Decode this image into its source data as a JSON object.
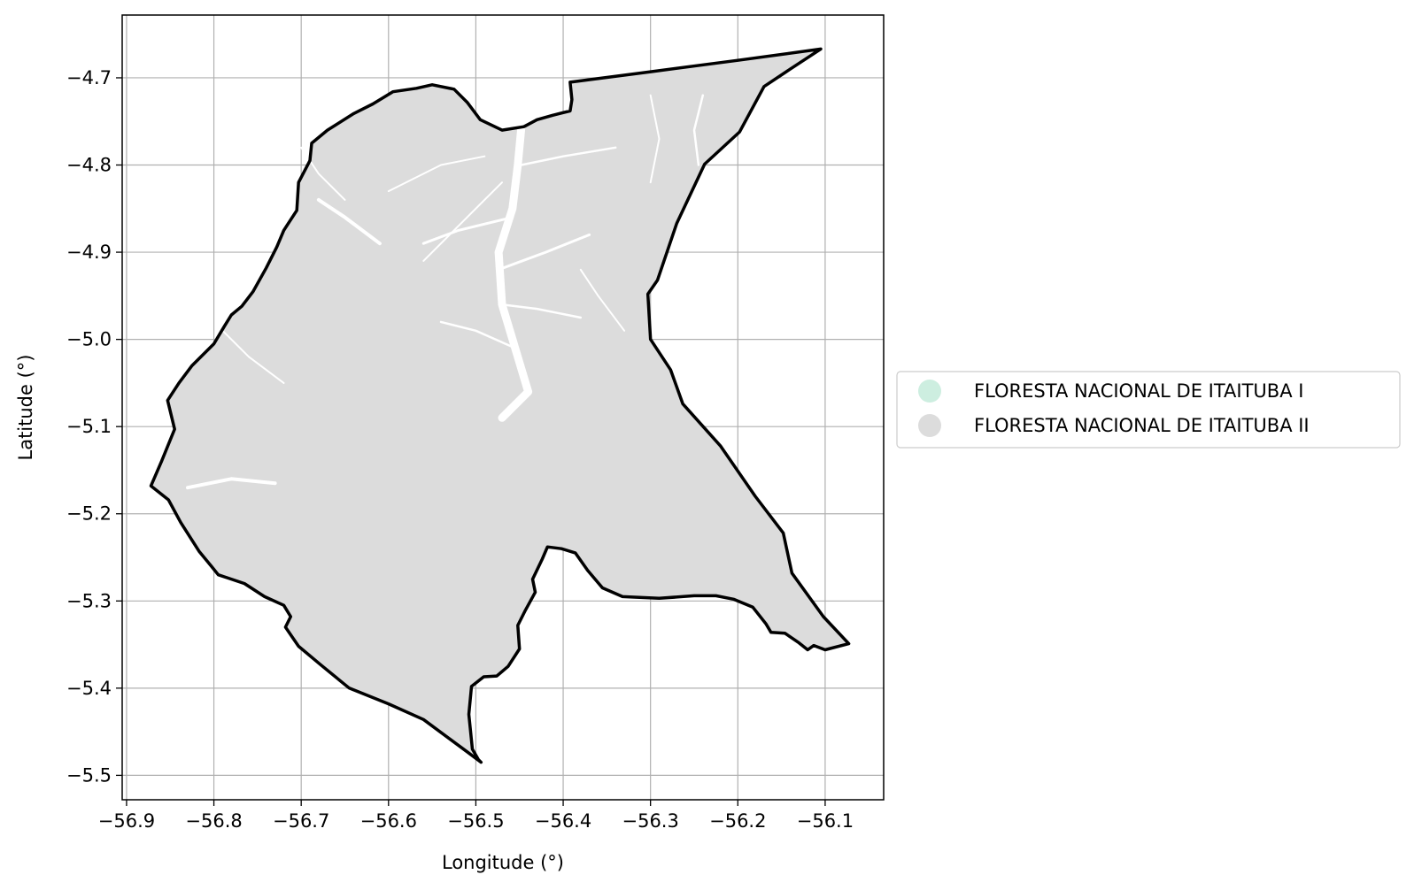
{
  "chart_data": {
    "type": "map",
    "xlabel": "Longitude (°)",
    "ylabel": "Latitude (°)",
    "xlim": [
      -56.905,
      -56.033
    ],
    "ylim": [
      -5.528,
      -4.628
    ],
    "x_ticks": [
      -56.9,
      -56.8,
      -56.7,
      -56.6,
      -56.5,
      -56.4,
      -56.3,
      -56.2,
      -56.1
    ],
    "x_tick_labels": [
      "−56.9",
      "−56.8",
      "−56.7",
      "−56.6",
      "−56.5",
      "−56.4",
      "−56.3",
      "−56.2",
      "−56.1"
    ],
    "y_ticks": [
      -4.7,
      -4.8,
      -4.9,
      -5.0,
      -5.1,
      -5.2,
      -5.3,
      -5.4,
      -5.5
    ],
    "y_tick_labels": [
      "−4.7",
      "−4.8",
      "−4.9",
      "−5.0",
      "−5.1",
      "−5.2",
      "−5.3",
      "−5.4",
      "−5.5"
    ],
    "grid": true,
    "legend_position": "center-right outside",
    "legend": [
      {
        "label": "FLORESTA NACIONAL DE ITAITUBA I",
        "color": "#cdeee0"
      },
      {
        "label": "FLORESTA NACIONAL DE ITAITUBA II",
        "color": "#dcdcdc"
      }
    ],
    "region_fill": "#dcdcdc",
    "boundary_color": "#000000",
    "boundary": [
      [
        -56.105,
        -4.667
      ],
      [
        -56.14,
        -4.69
      ],
      [
        -56.17,
        -4.71
      ],
      [
        -56.198,
        -4.762
      ],
      [
        -56.238,
        -4.799
      ],
      [
        -56.27,
        -4.867
      ],
      [
        -56.292,
        -4.932
      ],
      [
        -56.303,
        -4.948
      ],
      [
        -56.3,
        -5.0
      ],
      [
        -56.277,
        -5.035
      ],
      [
        -56.263,
        -5.074
      ],
      [
        -56.22,
        -5.122
      ],
      [
        -56.18,
        -5.18
      ],
      [
        -56.148,
        -5.222
      ],
      [
        -56.138,
        -5.268
      ],
      [
        -56.102,
        -5.318
      ],
      [
        -56.073,
        -5.349
      ],
      [
        -56.1,
        -5.356
      ],
      [
        -56.113,
        -5.351
      ],
      [
        -56.12,
        -5.356
      ],
      [
        -56.13,
        -5.348
      ],
      [
        -56.146,
        -5.337
      ],
      [
        -56.162,
        -5.336
      ],
      [
        -56.168,
        -5.326
      ],
      [
        -56.183,
        -5.307
      ],
      [
        -56.205,
        -5.298
      ],
      [
        -56.225,
        -5.294
      ],
      [
        -56.25,
        -5.294
      ],
      [
        -56.29,
        -5.297
      ],
      [
        -56.332,
        -5.295
      ],
      [
        -56.355,
        -5.285
      ],
      [
        -56.372,
        -5.265
      ],
      [
        -56.386,
        -5.245
      ],
      [
        -56.402,
        -5.24
      ],
      [
        -56.418,
        -5.238
      ],
      [
        -56.424,
        -5.252
      ],
      [
        -56.435,
        -5.275
      ],
      [
        -56.432,
        -5.29
      ],
      [
        -56.444,
        -5.312
      ],
      [
        -56.452,
        -5.328
      ],
      [
        -56.45,
        -5.355
      ],
      [
        -56.463,
        -5.375
      ],
      [
        -56.476,
        -5.386
      ],
      [
        -56.491,
        -5.387
      ],
      [
        -56.505,
        -5.398
      ],
      [
        -56.508,
        -5.43
      ],
      [
        -56.504,
        -5.47
      ],
      [
        -56.497,
        -5.482
      ],
      [
        -56.494,
        -5.485
      ],
      [
        -56.51,
        -5.473
      ],
      [
        -56.56,
        -5.436
      ],
      [
        -56.6,
        -5.418
      ],
      [
        -56.645,
        -5.4
      ],
      [
        -56.678,
        -5.373
      ],
      [
        -56.703,
        -5.352
      ],
      [
        -56.718,
        -5.33
      ],
      [
        -56.712,
        -5.318
      ],
      [
        -56.72,
        -5.305
      ],
      [
        -56.742,
        -5.295
      ],
      [
        -56.765,
        -5.28
      ],
      [
        -56.795,
        -5.27
      ],
      [
        -56.803,
        -5.26
      ],
      [
        -56.817,
        -5.243
      ],
      [
        -56.838,
        -5.21
      ],
      [
        -56.852,
        -5.184
      ],
      [
        -56.872,
        -5.168
      ],
      [
        -56.86,
        -5.14
      ],
      [
        -56.845,
        -5.103
      ],
      [
        -56.853,
        -5.07
      ],
      [
        -56.84,
        -5.05
      ],
      [
        -56.825,
        -5.03
      ],
      [
        -56.8,
        -5.005
      ],
      [
        -56.788,
        -4.985
      ],
      [
        -56.78,
        -4.972
      ],
      [
        -56.768,
        -4.962
      ],
      [
        -56.755,
        -4.945
      ],
      [
        -56.74,
        -4.918
      ],
      [
        -56.728,
        -4.894
      ],
      [
        -56.72,
        -4.875
      ],
      [
        -56.705,
        -4.852
      ],
      [
        -56.703,
        -4.82
      ],
      [
        -56.69,
        -4.795
      ],
      [
        -56.688,
        -4.775
      ],
      [
        -56.67,
        -4.76
      ],
      [
        -56.64,
        -4.741
      ],
      [
        -56.618,
        -4.73
      ],
      [
        -56.595,
        -4.716
      ],
      [
        -56.568,
        -4.712
      ],
      [
        -56.55,
        -4.708
      ],
      [
        -56.525,
        -4.713
      ],
      [
        -56.51,
        -4.728
      ],
      [
        -56.495,
        -4.748
      ],
      [
        -56.47,
        -4.76
      ],
      [
        -56.445,
        -4.756
      ],
      [
        -56.43,
        -4.748
      ],
      [
        -56.412,
        -4.743
      ],
      [
        -56.392,
        -4.738
      ],
      [
        -56.39,
        -4.725
      ],
      [
        -56.392,
        -4.705
      ],
      [
        -56.3,
        -4.693
      ],
      [
        -56.2,
        -4.68
      ],
      [
        -56.105,
        -4.667
      ]
    ]
  }
}
